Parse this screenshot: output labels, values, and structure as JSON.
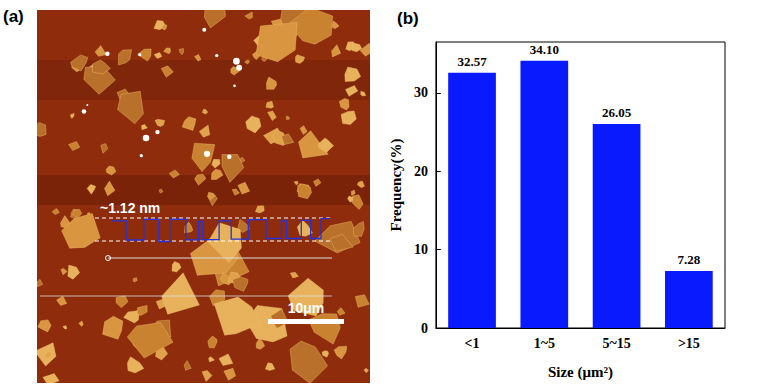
{
  "panel_a": {
    "label": "(a)",
    "annotations": [
      "~1.12 nm"
    ],
    "scale_bar": "10μm"
  },
  "chart_data": {
    "type": "bar",
    "title": "(b)",
    "x_label": "Size (μm²)",
    "y_label": "Frequency(%)",
    "categories": [
      "<1",
      "1~5",
      "5~15",
      ">15"
    ],
    "values": [
      32.57,
      34.1,
      26.05,
      7.28
    ],
    "value_labels": [
      "32.57",
      "34.10",
      "26.05",
      "7.28"
    ],
    "color": "#0a1aff",
    "ylim": [
      0,
      36.5
    ],
    "yticks": [
      0,
      10,
      20,
      30
    ],
    "grid": false,
    "data_labels": true
  }
}
